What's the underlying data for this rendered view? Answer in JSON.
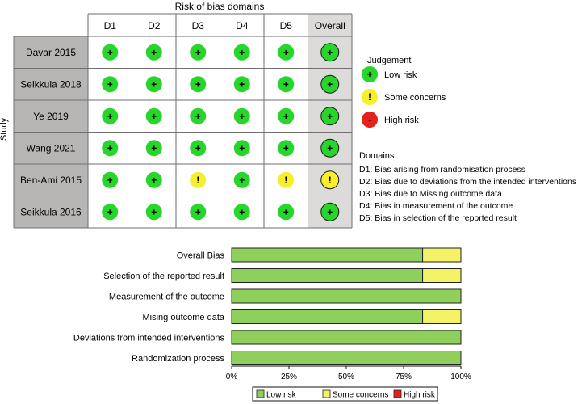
{
  "chart_data": [
    {
      "type": "table",
      "title": "Risk of bias domains",
      "row_axis_label": "Study",
      "columns": [
        "D1",
        "D2",
        "D3",
        "D4",
        "D5",
        "Overall"
      ],
      "studies": [
        {
          "name": "Davar 2015",
          "ratings": [
            "low",
            "low",
            "low",
            "low",
            "low",
            "low"
          ]
        },
        {
          "name": "Seikkula 2018",
          "ratings": [
            "low",
            "low",
            "low",
            "low",
            "low",
            "low"
          ]
        },
        {
          "name": "Ye 2019",
          "ratings": [
            "low",
            "low",
            "low",
            "low",
            "low",
            "low"
          ]
        },
        {
          "name": "Wang 2021",
          "ratings": [
            "low",
            "low",
            "low",
            "low",
            "low",
            "low"
          ]
        },
        {
          "name": "Ben-Ami 2015",
          "ratings": [
            "low",
            "low",
            "some",
            "low",
            "some",
            "some"
          ]
        },
        {
          "name": "Seikkula 2016",
          "ratings": [
            "low",
            "low",
            "low",
            "low",
            "low",
            "low"
          ]
        }
      ],
      "symbols": {
        "low": "+",
        "some": "!",
        "high": "-"
      },
      "legend": {
        "title": "Judgement",
        "items": [
          {
            "key": "low",
            "label": "Low risk"
          },
          {
            "key": "some",
            "label": "Some concerns"
          },
          {
            "key": "high",
            "label": "High risk"
          }
        ]
      },
      "domains": {
        "title": "Domains:",
        "items": [
          "D1: Bias arising from randomisation process",
          "D2: Bias due to deviations from the intended interventions",
          "D3: Bias due to Missing outcome data",
          "D4: Bias in measurement of the outcome",
          "D5: Bias in selection of the reported result"
        ]
      }
    },
    {
      "type": "bar",
      "orientation": "horizontal",
      "stacked": true,
      "categories": [
        "Overall Bias",
        "Selection of the reported result",
        "Measurement of the outcome",
        "Mising outcome data",
        "Deviations from intended interventions",
        "Randomization process"
      ],
      "series": [
        {
          "name": "Low risk",
          "key": "low",
          "values": [
            83.3,
            83.3,
            100,
            83.3,
            100,
            100
          ]
        },
        {
          "name": "Some concerns",
          "key": "some",
          "values": [
            16.7,
            16.7,
            0,
            16.7,
            0,
            0
          ]
        },
        {
          "name": "High risk",
          "key": "high",
          "values": [
            0,
            0,
            0,
            0,
            0,
            0
          ]
        }
      ],
      "xlim": [
        0,
        100
      ],
      "xticks": [
        "0%",
        "25%",
        "50%",
        "75%",
        "100%"
      ],
      "legend_position": "bottom"
    }
  ],
  "colors": {
    "low_dot": "#26d62a",
    "some_dot": "#f7ef2a",
    "high_dot": "#e4211a",
    "low_bar": "#8fcf5c",
    "some_bar": "#f4f266",
    "high_bar": "#e4211a",
    "label_cell": "#b8b6b4",
    "overall_cell": "#dcdbda",
    "grid_line": "#6f6f6f"
  }
}
